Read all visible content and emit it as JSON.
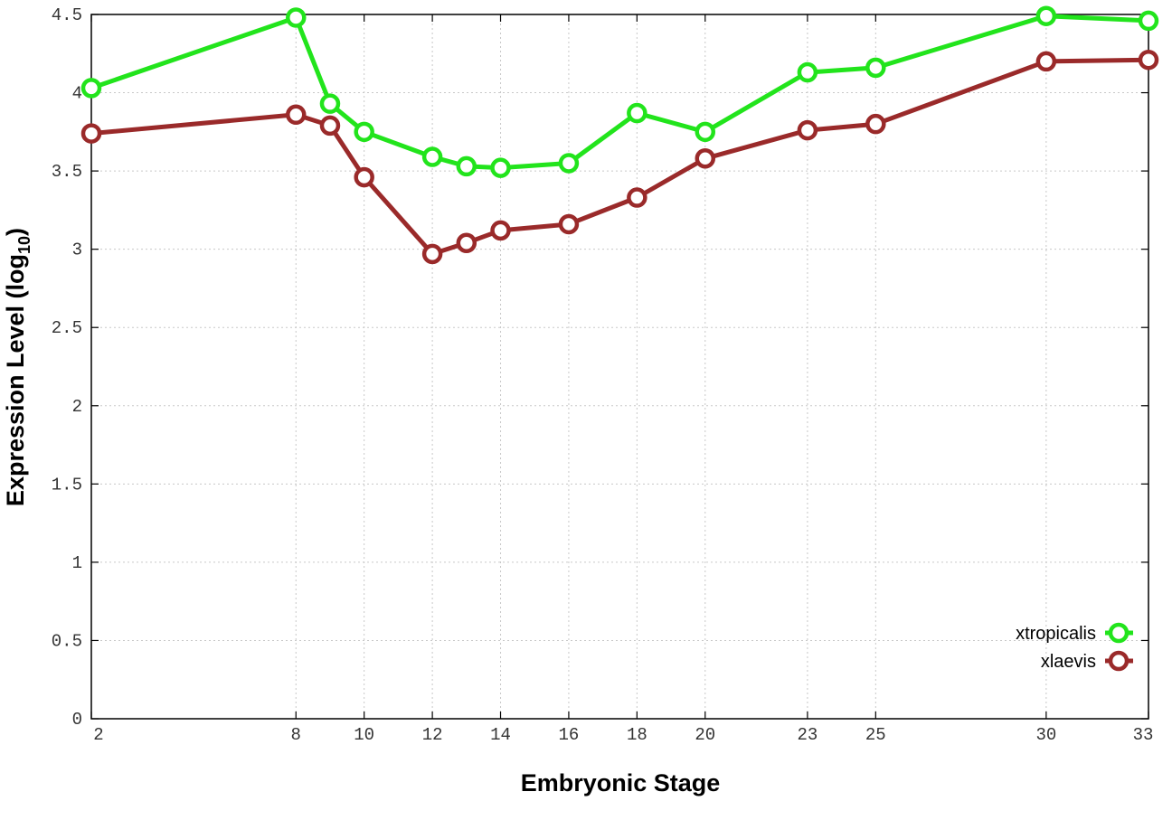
{
  "chart_data": {
    "type": "line",
    "xlabel": "Embryonic Stage",
    "ylabel": "Expression Level (log",
    "ylabel_sub": "10",
    "ylabel_close": ")",
    "x": [
      2,
      8,
      9,
      10,
      12,
      13,
      14,
      16,
      18,
      20,
      23,
      25,
      30,
      33
    ],
    "x_ticks": [
      2,
      8,
      10,
      12,
      14,
      16,
      18,
      20,
      23,
      25,
      30,
      33
    ],
    "xlim": [
      2,
      33
    ],
    "ylim": [
      0,
      4.5
    ],
    "y_ticks": [
      0,
      0.5,
      1,
      1.5,
      2,
      2.5,
      3,
      3.5,
      4,
      4.5
    ],
    "y_tick_labels": [
      "0",
      "0.5",
      "1",
      "1.5",
      "2",
      "2.5",
      "3",
      "3.5",
      "4",
      "4.5"
    ],
    "grid": true,
    "legend_position": "bottom-right",
    "series": [
      {
        "name": "xtropicalis",
        "color": "#22e41c",
        "values": [
          4.03,
          4.48,
          3.93,
          3.75,
          3.59,
          3.53,
          3.52,
          3.55,
          3.87,
          3.75,
          4.13,
          4.16,
          4.49,
          4.46
        ]
      },
      {
        "name": "xlaevis",
        "color": "#9a2a2a",
        "values": [
          3.74,
          3.86,
          3.79,
          3.46,
          2.97,
          3.04,
          3.12,
          3.16,
          3.33,
          3.58,
          3.76,
          3.8,
          4.2,
          4.21
        ]
      }
    ]
  }
}
